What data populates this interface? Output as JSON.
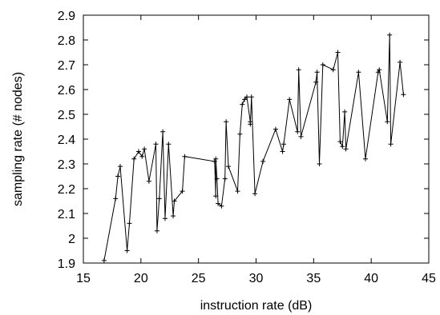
{
  "chart_data": {
    "type": "line",
    "title": "",
    "xlabel": "instruction rate (dB)",
    "ylabel": "sampling rate (# nodes)",
    "xlim": [
      15,
      45
    ],
    "ylim": [
      1.9,
      2.9
    ],
    "grid": false,
    "legend": "none",
    "colors": {
      "line": "#000000",
      "marker": "#000000",
      "axes": "#000000"
    },
    "x_ticks": [
      "15",
      "20",
      "25",
      "30",
      "35",
      "40",
      "45"
    ],
    "y_ticks": [
      "1.9",
      "2",
      "2.1",
      "2.2",
      "2.3",
      "2.4",
      "2.5",
      "2.6",
      "2.7",
      "2.8",
      "2.9"
    ],
    "series": [
      {
        "x": [
          16.8,
          17.8,
          18.0,
          18.2,
          18.8,
          19.0,
          19.4,
          19.8,
          20.1,
          20.3,
          20.7,
          21.3,
          21.4,
          21.6,
          21.9,
          22.1,
          22.4,
          22.8,
          22.9,
          23.6,
          23.8,
          26.4,
          26.5,
          26.5,
          26.6,
          26.7,
          27.0,
          27.3,
          27.4,
          27.6,
          28.4,
          28.6,
          28.8,
          29.0,
          29.2,
          29.5,
          29.5,
          29.6,
          29.9,
          30.6,
          31.7,
          32.3,
          32.4,
          32.9,
          33.6,
          33.7,
          33.9,
          35.2,
          35.3,
          35.5,
          35.8,
          36.7,
          37.1,
          37.3,
          37.5,
          37.7,
          37.8,
          38.9,
          39.5,
          40.6,
          40.7,
          41.4,
          41.6,
          41.7,
          42.5,
          42.8
        ],
        "y": [
          1.91,
          2.16,
          2.25,
          2.29,
          1.95,
          2.06,
          2.32,
          2.35,
          2.33,
          2.36,
          2.23,
          2.38,
          2.03,
          2.16,
          2.43,
          2.08,
          2.38,
          2.09,
          2.15,
          2.19,
          2.33,
          2.31,
          2.17,
          2.32,
          2.24,
          2.14,
          2.13,
          2.24,
          2.47,
          2.29,
          2.19,
          2.42,
          2.54,
          2.56,
          2.57,
          2.47,
          2.46,
          2.57,
          2.18,
          2.31,
          2.44,
          2.35,
          2.38,
          2.56,
          2.43,
          2.68,
          2.41,
          2.63,
          2.67,
          2.3,
          2.7,
          2.68,
          2.75,
          2.39,
          2.37,
          2.51,
          2.36,
          2.67,
          2.32,
          2.67,
          2.68,
          2.47,
          2.82,
          2.38,
          2.71,
          2.58
        ]
      }
    ]
  }
}
